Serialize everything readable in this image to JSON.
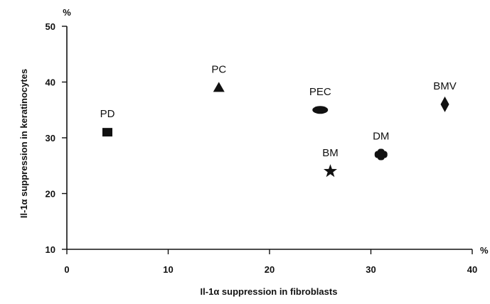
{
  "chart_data": {
    "type": "scatter",
    "title": "",
    "xlabel": "Il-1α suppression in fibroblasts",
    "ylabel": "Il-1α suppression in keratinocytes",
    "x_unit": "%",
    "y_unit": "%",
    "xlim": [
      0,
      40
    ],
    "ylim": [
      10,
      50
    ],
    "xticks": [
      0,
      10,
      20,
      30,
      40
    ],
    "yticks": [
      10,
      20,
      30,
      40,
      50
    ],
    "grid": false,
    "legend": "none",
    "points": [
      {
        "label": "PD",
        "x": 4,
        "y": 31,
        "marker": "square"
      },
      {
        "label": "PC",
        "x": 15,
        "y": 39,
        "marker": "triangle"
      },
      {
        "label": "PEC",
        "x": 25,
        "y": 35,
        "marker": "ellipse"
      },
      {
        "label": "BM",
        "x": 26,
        "y": 24,
        "marker": "star"
      },
      {
        "label": "DM",
        "x": 31,
        "y": 27,
        "marker": "rounded-cross"
      },
      {
        "label": "BMV",
        "x": 37.3,
        "y": 36,
        "marker": "diamond"
      }
    ],
    "colors": {
      "marker": "#111111",
      "axis": "#111111"
    }
  }
}
